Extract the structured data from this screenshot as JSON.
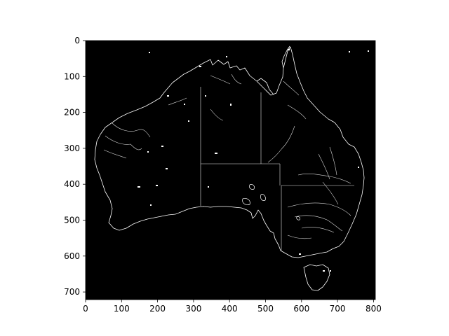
{
  "image": {
    "subject": "edge-detected map",
    "background_color": "#000000",
    "line_color": "#ffffff"
  },
  "axes": {
    "x_ticks": [
      "0",
      "100",
      "200",
      "300",
      "400",
      "500",
      "600",
      "700",
      "800"
    ],
    "y_ticks": [
      "0",
      "100",
      "200",
      "300",
      "400",
      "500",
      "600",
      "700"
    ],
    "xlim": [
      0,
      805
    ],
    "ylim": [
      0,
      720
    ]
  }
}
